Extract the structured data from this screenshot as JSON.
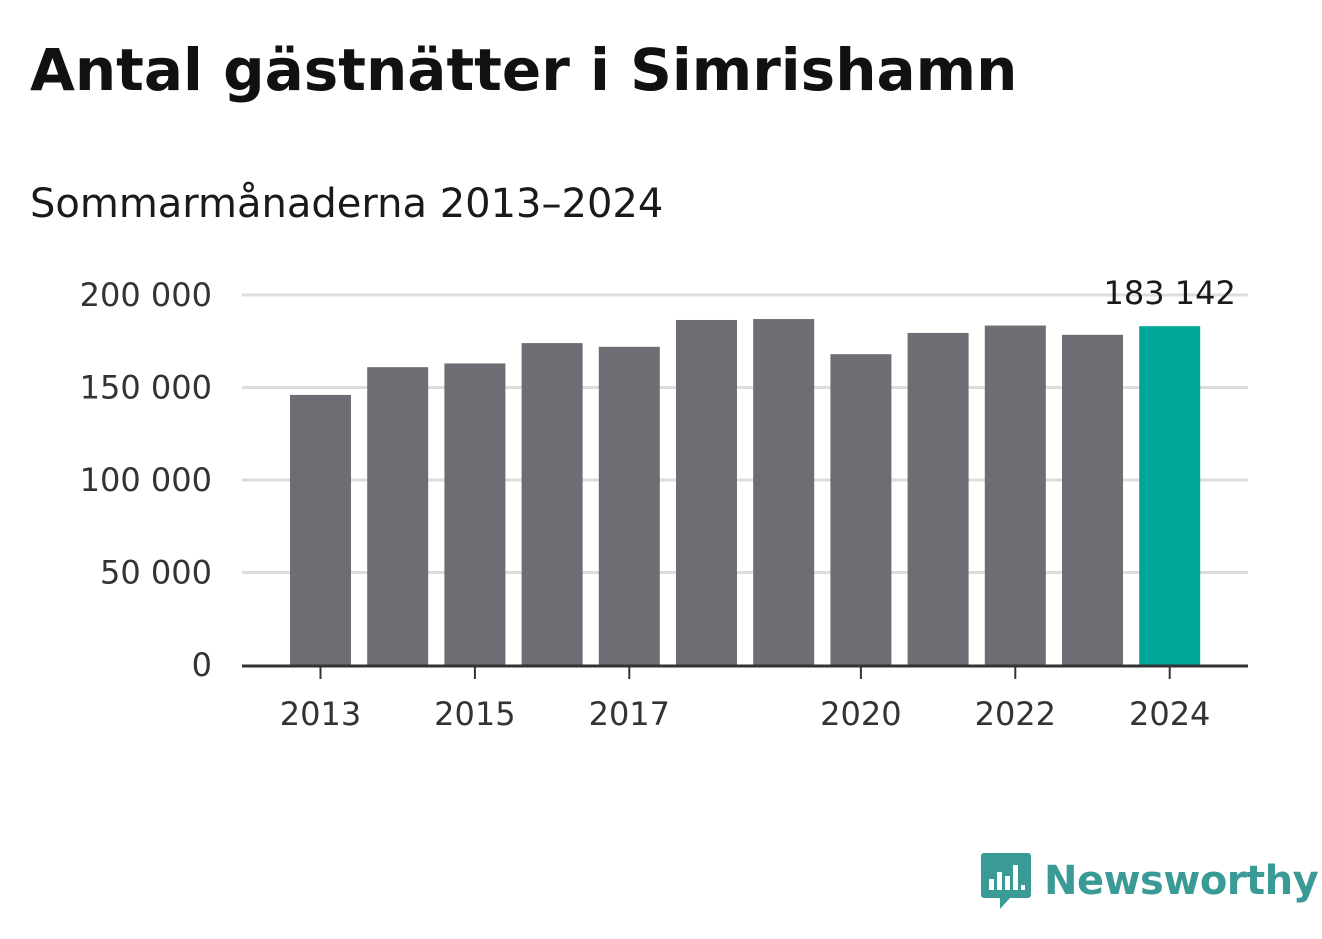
{
  "title": "Antal gästnätter i Simrishamn",
  "subtitle": "Sommarmånaderna 2013–2024",
  "brand": {
    "name": "Newsworthy",
    "color": "#3a9a96",
    "icon": "newsworthy-logo-icon"
  },
  "colors": {
    "bar": "#6e6d73",
    "highlight": "#00a698",
    "grid": "#dddddd",
    "axis": "#333333"
  },
  "chart_data": {
    "type": "bar",
    "categories": [
      "2013",
      "2014",
      "2015",
      "2016",
      "2017",
      "2018",
      "2019",
      "2020",
      "2021",
      "2022",
      "2023",
      "2024"
    ],
    "values": [
      146000,
      161000,
      163000,
      174000,
      172000,
      186500,
      187000,
      168000,
      179500,
      183500,
      178500,
      183142
    ],
    "highlight_index": 11,
    "data_labels": [
      {
        "index": 11,
        "text": "183 142"
      }
    ],
    "x_tick_labels": [
      "2013",
      "2015",
      "2017",
      "2020",
      "2022",
      "2024"
    ],
    "y_ticks": [
      0,
      50000,
      100000,
      150000,
      200000
    ],
    "y_tick_labels": [
      "0",
      "50 000",
      "100 000",
      "150 000",
      "200 000"
    ],
    "ylim": [
      0,
      200000
    ],
    "grid": true,
    "legend": "none"
  }
}
